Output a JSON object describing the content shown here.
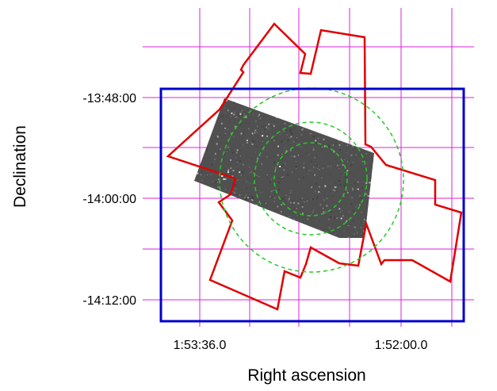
{
  "axes": {
    "x_title": "Right ascension",
    "y_title": "Declination",
    "x_ticks": [
      "1:53:36.0",
      "1:52:00.0"
    ],
    "y_ticks": [
      "-13:48:00",
      "-14:00:00",
      "-14:12:00"
    ]
  },
  "colors": {
    "grid": "#dd22dd",
    "footprint": "#e00000",
    "frame": "#0000cc",
    "circles": "#22cc22",
    "image": "#555555"
  }
}
